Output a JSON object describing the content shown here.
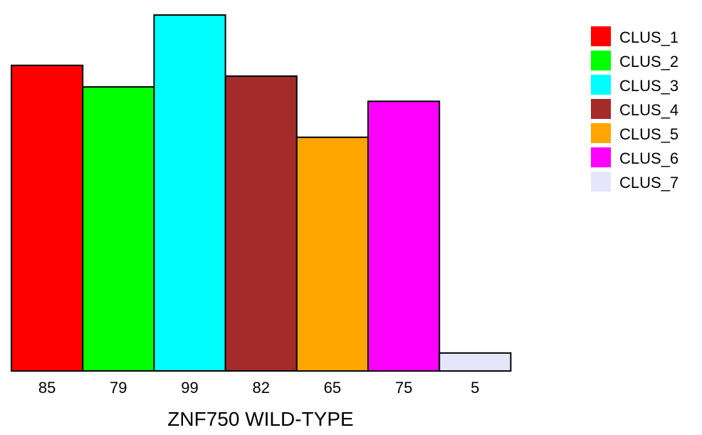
{
  "chart_data": {
    "type": "bar",
    "title": "",
    "xlabel": "ZNF750 WILD-TYPE",
    "ylabel": "",
    "ylim": [
      0,
      100
    ],
    "grid": false,
    "legend_position": "top-right",
    "categories": [
      "85",
      "79",
      "99",
      "82",
      "65",
      "75",
      "5"
    ],
    "values": [
      85,
      79,
      99,
      82,
      65,
      75,
      5
    ],
    "series": [
      {
        "name": "CLUS_1",
        "value": 85,
        "color": "#ff0000"
      },
      {
        "name": "CLUS_2",
        "value": 79,
        "color": "#00ff00"
      },
      {
        "name": "CLUS_3",
        "value": 99,
        "color": "#00ffff"
      },
      {
        "name": "CLUS_4",
        "value": 82,
        "color": "#a52a2a"
      },
      {
        "name": "CLUS_5",
        "value": 65,
        "color": "#ffa500"
      },
      {
        "name": "CLUS_6",
        "value": 75,
        "color": "#ff00ff"
      },
      {
        "name": "CLUS_7",
        "value": 5,
        "color": "#e6e6fa"
      }
    ]
  }
}
